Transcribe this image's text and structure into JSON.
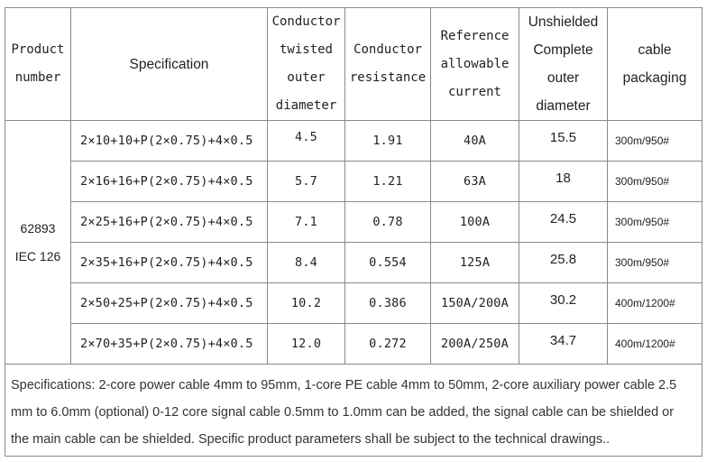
{
  "headers": {
    "product_number": [
      "Product",
      "number"
    ],
    "specification": "Specification",
    "conductor_outer_diameter": [
      "Conductor",
      "twisted",
      "outer",
      "diameter"
    ],
    "conductor_resistance": [
      "Conductor",
      "resistance"
    ],
    "reference_current": [
      "Reference",
      "allowable",
      "current"
    ],
    "unshielded_diameter": [
      "Unshielded",
      "Complete",
      "outer",
      "diameter"
    ],
    "packaging": [
      "cable",
      "packaging"
    ]
  },
  "product_number": [
    "62893",
    "IEC 126"
  ],
  "rows": [
    {
      "spec": "2×10+10+P(2×0.75)+4×0.5",
      "outer_diameter": "4.5",
      "resistance": "1.91",
      "current": "40A",
      "unshielded_diameter": "15.5",
      "packaging": "300m/950#"
    },
    {
      "spec": "2×16+16+P(2×0.75)+4×0.5",
      "outer_diameter": "5.7",
      "resistance": "1.21",
      "current": "63A",
      "unshielded_diameter": "18",
      "packaging": "300m/950#"
    },
    {
      "spec": "2×25+16+P(2×0.75)+4×0.5",
      "outer_diameter": "7.1",
      "resistance": "0.78",
      "current": "100A",
      "unshielded_diameter": "24.5",
      "packaging": "300m/950#"
    },
    {
      "spec": "2×35+16+P(2×0.75)+4×0.5",
      "outer_diameter": "8.4",
      "resistance": "0.554",
      "current": "125A",
      "unshielded_diameter": "25.8",
      "packaging": "300m/950#"
    },
    {
      "spec": "2×50+25+P(2×0.75)+4×0.5",
      "outer_diameter": "10.2",
      "resistance": "0.386",
      "current": "150A/200A",
      "unshielded_diameter": "30.2",
      "packaging": "400m/1200#"
    },
    {
      "spec": "2×70+35+P(2×0.75)+4×0.5",
      "outer_diameter": "12.0",
      "resistance": "0.272",
      "current": "200A/250A",
      "unshielded_diameter": "34.7",
      "packaging": "400m/1200#"
    }
  ],
  "note": "Specifications: 2-core power cable 4mm to 95mm, 1-core PE cable 4mm to 50mm, 2-core auxiliary power cable 2.5 mm to 6.0mm (optional) 0-12 core signal cable 0.5mm to 1.0mm can be added, the signal cable can be shielded or the main cable can be shielded. Specific product parameters shall be subject to the technical drawings.."
}
